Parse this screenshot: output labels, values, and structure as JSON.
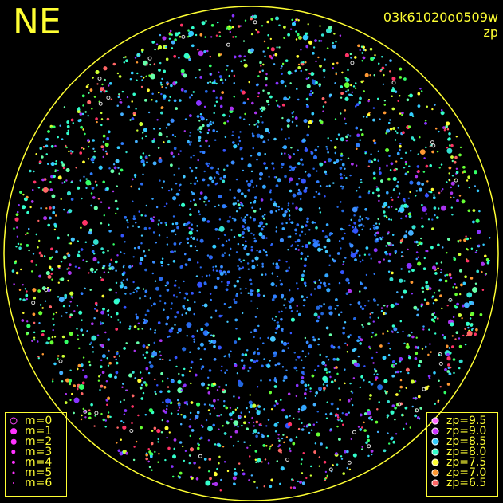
{
  "header": {
    "corner_label": "NE",
    "image_id": "03k61020o0509w",
    "color_mode": "zp"
  },
  "colors": {
    "horizon": "#ffff33",
    "text": "#ffff33",
    "background": "#000000"
  },
  "legend_magnitude": [
    {
      "label": "m=0",
      "mag": 0,
      "style": "ring",
      "color": "#ff44ff"
    },
    {
      "label": "m=1",
      "mag": 1,
      "style": "dot",
      "color": "#ff33ff"
    },
    {
      "label": "m=2",
      "mag": 2,
      "style": "dot",
      "color": "#ff33ff"
    },
    {
      "label": "m=3",
      "mag": 3,
      "style": "dot",
      "color": "#ff33ff"
    },
    {
      "label": "m=4",
      "mag": 4,
      "style": "dot",
      "color": "#ff33ff"
    },
    {
      "label": "m=5",
      "mag": 5,
      "style": "dot",
      "color": "#ff33ff"
    },
    {
      "label": "m=6",
      "mag": 6,
      "style": "dot",
      "color": "#ff33ff"
    }
  ],
  "legend_zp": [
    {
      "label": "zp=9.5",
      "color": "#ff66ff"
    },
    {
      "label": "zp=9.0",
      "color": "#cc33ff"
    },
    {
      "label": "zp=8.5",
      "color": "#33ccff"
    },
    {
      "label": "zp=8.0",
      "color": "#33ffcc"
    },
    {
      "label": "zp=7.5",
      "color": "#ffff33"
    },
    {
      "label": "zp=7.0",
      "color": "#ff9933"
    },
    {
      "label": "zp=6.5",
      "color": "#ff6666"
    }
  ]
}
